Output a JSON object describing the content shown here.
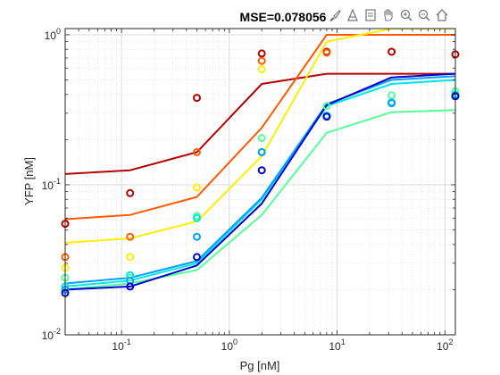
{
  "toolbar": {
    "icons": [
      "brush-icon",
      "data-tips-icon",
      "restore-view-icon",
      "pan-icon",
      "zoom-in-icon",
      "zoom-out-icon",
      "home-icon"
    ]
  },
  "chart_data": {
    "type": "line",
    "title": "MSE=0.078056",
    "xlabel": "Pg [nM]",
    "ylabel": "YFP [nM]",
    "xscale": "log",
    "yscale": "log",
    "xlim": [
      0.03,
      125
    ],
    "ylim": [
      0.01,
      1.1
    ],
    "grid": true,
    "x_ticks": [
      {
        "v": 0.1,
        "b": "10",
        "e": "-1"
      },
      {
        "v": 1,
        "b": "10",
        "e": "0"
      },
      {
        "v": 10,
        "b": "10",
        "e": "1"
      },
      {
        "v": 100,
        "b": "10",
        "e": "2"
      }
    ],
    "y_ticks": [
      {
        "v": 0.01,
        "b": "10",
        "e": "-2"
      },
      {
        "v": 0.1,
        "b": "10",
        "e": "-1"
      },
      {
        "v": 1,
        "b": "10",
        "e": "0"
      }
    ],
    "x": [
      0.03,
      0.12,
      0.5,
      2,
      8,
      32,
      125
    ],
    "series": [
      {
        "color": "#b30000",
        "line": [
          0.118,
          0.125,
          0.165,
          0.47,
          0.55,
          0.55,
          0.55
        ],
        "points": [
          0.055,
          0.088,
          0.38,
          0.75,
          0.77,
          0.77,
          0.74
        ]
      },
      {
        "color": "#ff5a00",
        "line": [
          0.059,
          0.063,
          0.083,
          0.24,
          1.0,
          1.0,
          1.0
        ],
        "points": [
          0.033,
          0.045,
          0.165,
          0.67,
          0.76,
          null,
          null
        ]
      },
      {
        "color": "#ffee00",
        "line": [
          0.041,
          0.044,
          0.057,
          0.155,
          0.9,
          1.1,
          1.1
        ],
        "points": [
          0.028,
          0.033,
          0.096,
          0.59,
          null,
          null,
          null
        ]
      },
      {
        "color": "#55ff99",
        "line": [
          0.02,
          0.022,
          0.027,
          0.063,
          0.222,
          0.305,
          0.315
        ],
        "points": [
          0.024,
          0.024,
          0.062,
          0.205,
          0.335,
          0.395,
          0.42
        ]
      },
      {
        "color": "#00e5e5",
        "line": [
          0.021,
          0.023,
          0.03,
          0.08,
          0.335,
          0.47,
          0.5
        ],
        "points": [
          0.021,
          0.025,
          0.06,
          0.165,
          0.29,
          0.355,
          0.4
        ]
      },
      {
        "color": "#00a0ff",
        "line": [
          0.022,
          0.024,
          0.031,
          0.082,
          0.345,
          0.5,
          0.53
        ],
        "points": [
          0.02,
          0.023,
          0.045,
          0.165,
          0.285,
          0.35,
          0.39
        ]
      },
      {
        "color": "#0000cc",
        "line": [
          0.02,
          0.021,
          0.029,
          0.075,
          0.34,
          0.52,
          0.55
        ],
        "points": [
          0.019,
          0.021,
          0.033,
          0.125,
          0.285,
          null,
          0.39
        ]
      }
    ]
  }
}
